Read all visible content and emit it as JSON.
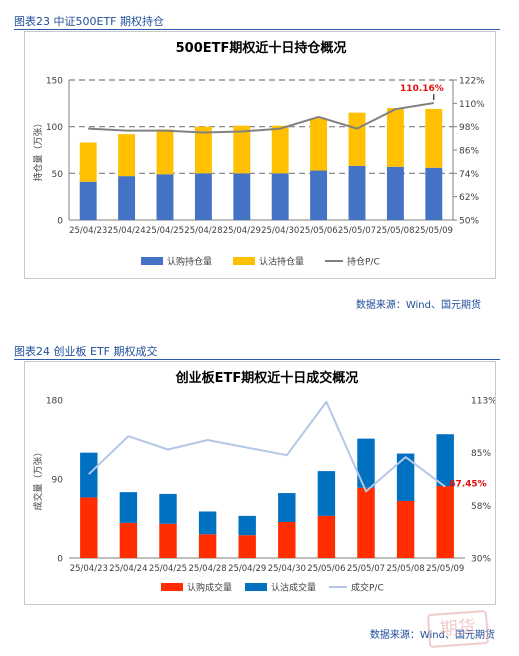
{
  "figure1": {
    "caption": "图表23 中证500ETF 期权持仓",
    "source": "数据来源：Wind、国元期货"
  },
  "figure2": {
    "caption": "图表24 创业板 ETF 期权成交",
    "source": "数据来源：Wind、国元期货"
  },
  "stamp_text": "期货",
  "colors": {
    "caption_blue": "#1f4e9a",
    "call_blue": "#4472c4",
    "put_yellow": "#ffc000",
    "pc_grey": "#808080",
    "call_red": "#ff2d00",
    "put_blue": "#0070c0",
    "pc_lightblue": "#b4c7e7",
    "label_red": "#e01010"
  },
  "chart_data": [
    {
      "type": "bar",
      "stacked": true,
      "title": "500ETF期权近十日持仓概况",
      "categories": [
        "25/04/23",
        "25/04/24",
        "25/04/25",
        "25/04/28",
        "25/04/29",
        "25/04/30",
        "25/05/06",
        "25/05/07",
        "25/05/08",
        "25/05/09"
      ],
      "ylabel": "持仓量（万张）",
      "ylim": [
        0,
        150
      ],
      "yticks": [
        "0",
        "50",
        "100",
        "150"
      ],
      "y2lim": [
        0.5,
        1.22
      ],
      "y2ticks": [
        "50%",
        "62%",
        "74%",
        "86%",
        "98%",
        "110%",
        "122%"
      ],
      "series": [
        {
          "name": "认购持仓量",
          "axis": "left",
          "values": [
            41,
            47,
            49,
            50,
            50,
            50,
            53,
            58,
            57,
            56
          ]
        },
        {
          "name": "认沽持仓量",
          "axis": "left",
          "values": [
            42,
            45,
            48,
            50,
            51,
            51,
            56,
            57,
            63,
            63
          ]
        },
        {
          "name": "持仓P/C",
          "type": "line",
          "axis": "right",
          "values": [
            0.97,
            0.96,
            0.96,
            0.95,
            0.955,
            0.97,
            1.03,
            0.97,
            1.07,
            1.1016
          ]
        }
      ],
      "annotation": "110.16%",
      "grid": "dashed",
      "legend": "bottom"
    },
    {
      "type": "bar",
      "stacked": true,
      "title": "创业板ETF期权近十日成交概况",
      "categories": [
        "25/04/23",
        "25/04/24",
        "25/04/25",
        "25/04/28",
        "25/04/29",
        "25/04/30",
        "25/05/06",
        "25/05/07",
        "25/05/08",
        "25/05/09"
      ],
      "ylabel": "成交量（万张）",
      "ylim": [
        0,
        180
      ],
      "yticks": [
        "0",
        "90",
        "180"
      ],
      "y2lim": [
        0.3,
        1.13
      ],
      "y2ticks": [
        "30%",
        "58%",
        "85%",
        "113%"
      ],
      "series": [
        {
          "name": "认购成交量",
          "axis": "left",
          "values": [
            69,
            40,
            39,
            27,
            26,
            41,
            48,
            80,
            65,
            82
          ]
        },
        {
          "name": "认沽成交量",
          "axis": "left",
          "values": [
            51,
            35,
            34,
            26,
            22,
            33,
            51,
            56,
            54,
            59
          ]
        },
        {
          "name": "成交P/C",
          "type": "line",
          "axis": "right",
          "values": [
            0.74,
            0.94,
            0.87,
            0.92,
            0.88,
            0.84,
            1.12,
            0.65,
            0.83,
            0.6745
          ]
        }
      ],
      "annotation": "67.45%",
      "grid": "off",
      "legend": "bottom"
    }
  ]
}
